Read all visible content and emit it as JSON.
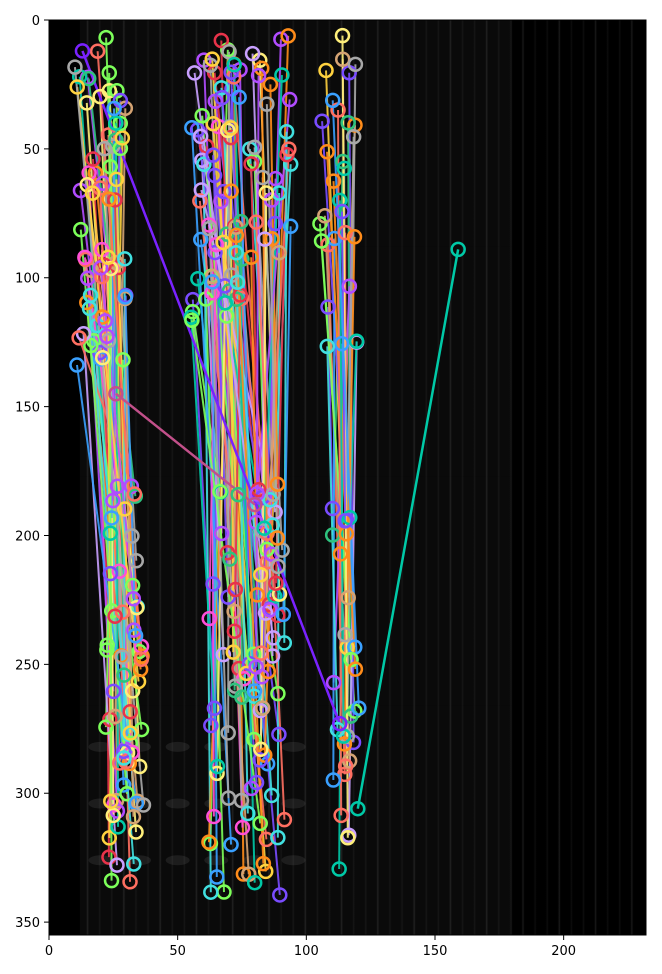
{
  "figure": {
    "kind": "keypoint-match-visualization",
    "colors": {
      "axes_frame": "#000000",
      "background": "#ffffff",
      "image_background": "#000000",
      "match_palette": [
        "#ff8c1a",
        "#e8334a",
        "#2ec27e",
        "#3aa0ff",
        "#b14cff",
        "#ffd23f",
        "#7dff5a",
        "#ff4fd8",
        "#41e0e0",
        "#a8a8a8",
        "#ff6f61",
        "#c9a0ff",
        "#00c9a7",
        "#ffef7a",
        "#7a4cff",
        "#d4a373"
      ]
    },
    "axes": {
      "x": {
        "ticks": [
          0,
          50,
          100,
          150,
          200
        ],
        "range": [
          0,
          232
        ]
      },
      "y": {
        "ticks": [
          0,
          50,
          100,
          150,
          200,
          250,
          300,
          350
        ],
        "range": [
          355,
          0
        ],
        "inverted": true
      }
    },
    "highlighted_matches": [
      {
        "from": [
          13,
          12
        ],
        "to": [
          113,
          273
        ],
        "color": "#7a22ff"
      },
      {
        "from": [
          120,
          306
        ],
        "to": [
          159,
          89
        ],
        "color": "#00c9a7"
      },
      {
        "from": [
          26,
          145
        ],
        "to": [
          80,
          188
        ],
        "color": "#c2508a"
      }
    ]
  }
}
